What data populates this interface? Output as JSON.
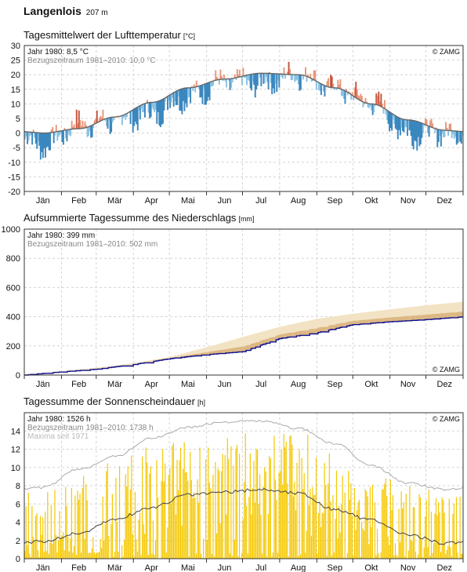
{
  "station": {
    "name": "Langenlois",
    "altitude": "207 m"
  },
  "months": [
    "Jän",
    "Feb",
    "Mär",
    "Apr",
    "Mai",
    "Jun",
    "Jul",
    "Aug",
    "Sep",
    "Okt",
    "Nov",
    "Dez"
  ],
  "copyright": "© ZAMG",
  "chart_data": [
    {
      "type": "area",
      "title": "Tagesmittelwert der Lufttemperatur",
      "unit": "[°C]",
      "info_year": "Jahr 1980: 8,5 °C",
      "info_ref": "Bezugszeitraum 1981–2010: 10,0 °C",
      "ylim": [
        -20,
        30
      ],
      "yticks": [
        -20,
        -15,
        -10,
        -5,
        0,
        5,
        10,
        15,
        20,
        25,
        30
      ],
      "grid": true,
      "colors": {
        "warm": "#e8967a",
        "warm_dark": "#c4533a",
        "cold": "#8cc3e2",
        "cold_dark": "#3a87bf",
        "reference": "#666666"
      },
      "reference_monthly": [
        0.0,
        1.5,
        5.5,
        10.5,
        15.5,
        18.5,
        20.5,
        20.0,
        15.5,
        10.0,
        4.5,
        1.0
      ],
      "series_monthly": [
        -4.5,
        3.0,
        4.0,
        6.5,
        12.5,
        17.5,
        17.0,
        20.0,
        15.5,
        10.5,
        -0.5,
        0.5
      ]
    },
    {
      "type": "area",
      "title": "Aufsummierte Tagessumme des Niederschlags",
      "unit": "[mm]",
      "info_year": "Jahr 1980: 399 mm",
      "info_ref": "Bezugszeitraum 1981–2010: 502 mm",
      "ylim": [
        0,
        1000
      ],
      "yticks": [
        0,
        200,
        400,
        600,
        800,
        1000
      ],
      "grid": true,
      "colors": {
        "deficit": "#f2e3c4",
        "deficit_dark": "#d6ad74",
        "year": "#0f0f8a"
      },
      "x": [
        "Jän",
        "Feb",
        "Mär",
        "Apr",
        "Mai",
        "Jun",
        "Jul",
        "Aug",
        "Sep",
        "Okt",
        "Nov",
        "Dez",
        "end"
      ],
      "reference_cumulative": [
        0,
        27,
        50,
        82,
        124,
        190,
        260,
        330,
        385,
        420,
        450,
        478,
        502
      ],
      "year_cumulative": [
        0,
        22,
        40,
        72,
        112,
        140,
        160,
        250,
        290,
        345,
        365,
        380,
        399
      ]
    },
    {
      "type": "bar",
      "title": "Tagessumme der Sonnenscheindauer",
      "unit": "[h]",
      "info_year": "Jahr 1980: 1526 h",
      "info_ref": "Bezugszeitraum 1981–2010: 1738 h",
      "info_max": "Maxima seit 1971",
      "ylim": [
        0,
        16
      ],
      "yticks": [
        0,
        2,
        4,
        6,
        8,
        10,
        12,
        14
      ],
      "grid": true,
      "colors": {
        "bars": "#f5c800",
        "reference": "#444444",
        "maxima": "#aaaaaa"
      },
      "reference_monthly": [
        1.9,
        2.8,
        4.3,
        5.6,
        7.0,
        7.3,
        7.6,
        7.2,
        5.4,
        4.2,
        2.6,
        1.7
      ],
      "maxima_monthly": [
        7.8,
        9.8,
        11.2,
        13.2,
        14.4,
        15.0,
        15.1,
        14.3,
        12.6,
        10.2,
        8.3,
        7.6
      ],
      "series_monthly": [
        2.5,
        3.0,
        4.0,
        5.5,
        7.5,
        6.0,
        7.0,
        7.5,
        6.5,
        5.0,
        2.5,
        1.5
      ]
    }
  ]
}
